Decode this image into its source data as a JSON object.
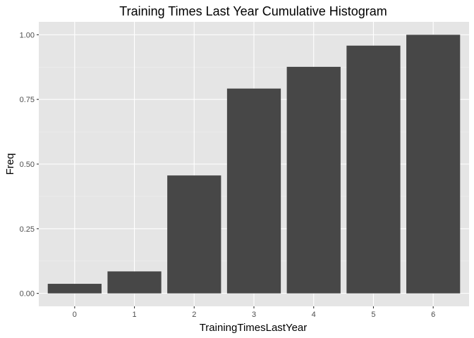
{
  "chart_data": {
    "type": "bar",
    "title": "Training Times Last Year Cumulative Histogram",
    "xlabel": "TrainingTimesLastYear",
    "ylabel": "Freq",
    "categories": [
      "0",
      "1",
      "2",
      "3",
      "4",
      "5",
      "6"
    ],
    "values": [
      0.037,
      0.085,
      0.456,
      0.792,
      0.876,
      0.958,
      1.0
    ],
    "ylim": [
      -0.05,
      1.05
    ],
    "yticks": [
      0.0,
      0.25,
      0.5,
      0.75,
      1.0
    ],
    "ytick_labels": [
      "0.00",
      "0.25",
      "0.50",
      "0.75",
      "1.00"
    ],
    "grid": true,
    "colors": {
      "bar": "#474747",
      "panel": "#e5e5e5",
      "grid": "#ffffff"
    }
  }
}
